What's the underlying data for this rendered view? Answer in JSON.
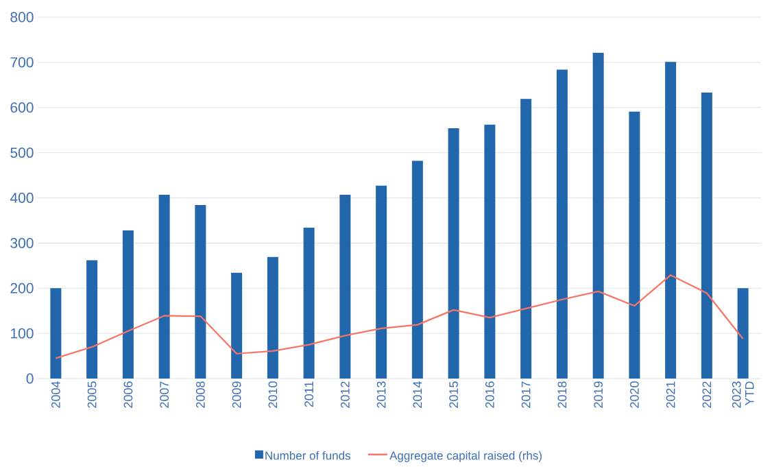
{
  "chart_data": {
    "type": "bar",
    "categories": [
      "2004",
      "2005",
      "2006",
      "2007",
      "2008",
      "2009",
      "2010",
      "2011",
      "2012",
      "2013",
      "2014",
      "2015",
      "2016",
      "2017",
      "2018",
      "2019",
      "2020",
      "2021",
      "2022",
      "2023 YTD"
    ],
    "series": [
      {
        "name": "Number of funds",
        "color": "#2266ab",
        "values": [
          200,
          262,
          328,
          407,
          384,
          234,
          269,
          334,
          407,
          427,
          482,
          554,
          562,
          619,
          684,
          721,
          591,
          701,
          633,
          200
        ]
      },
      {
        "name": "Aggregate capital raised (rhs)",
        "type": "line",
        "color": "#f87466",
        "values": [
          45,
          70,
          105,
          139,
          138,
          55,
          61,
          75,
          95,
          111,
          119,
          152,
          135,
          155,
          175,
          193,
          161,
          229,
          189,
          88
        ]
      }
    ],
    "ylim": [
      0,
      800
    ],
    "yticks": [
      0,
      100,
      200,
      300,
      400,
      500,
      600,
      700,
      800
    ],
    "grid": "y",
    "legend": "bottom"
  }
}
